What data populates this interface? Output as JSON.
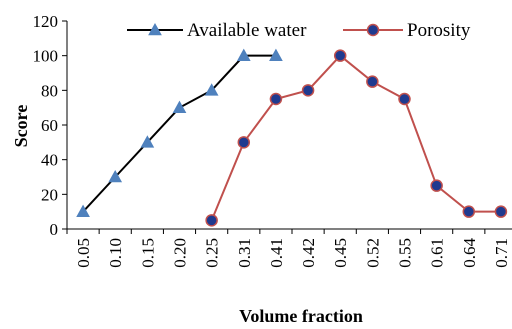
{
  "chart_data": {
    "type": "line",
    "title": "",
    "xlabel": "Volume fraction",
    "ylabel": "Score",
    "ylim": [
      0,
      120
    ],
    "yticks": [
      0,
      20,
      40,
      60,
      80,
      100,
      120
    ],
    "categories": [
      "0.05",
      "0.10",
      "0.15",
      "0.20",
      "0.25",
      "0.31",
      "0.41",
      "0.42",
      "0.45",
      "0.52",
      "0.55",
      "0.61",
      "0.64",
      "0.71"
    ],
    "grid": false,
    "legend": {
      "placement": "top"
    },
    "series": [
      {
        "name": "Available water",
        "color": "#000000",
        "marker": "triangle",
        "marker_color": "#4f81bd",
        "values": [
          10,
          30,
          50,
          70,
          80,
          100,
          100,
          null,
          null,
          null,
          null,
          null,
          null,
          null
        ]
      },
      {
        "name": "Porosity",
        "color": "#c0504d",
        "marker": "circle",
        "marker_color": "#1f3a8f",
        "values": [
          null,
          null,
          null,
          null,
          5,
          50,
          75,
          80,
          100,
          85,
          75,
          25,
          10,
          10
        ]
      }
    ]
  }
}
